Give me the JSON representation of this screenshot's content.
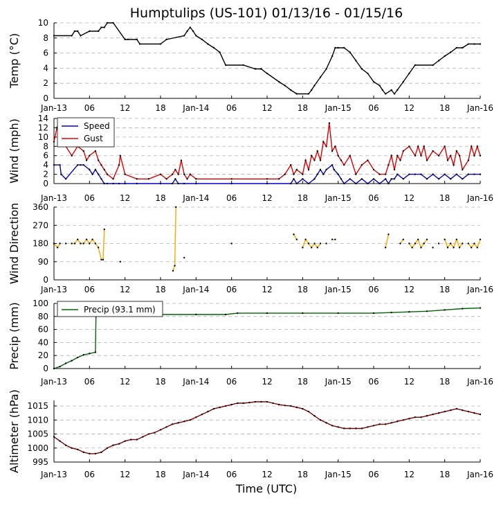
{
  "title": "Humptulips (US-101) 01/13/16 - 01/15/16",
  "xlabel": "Time (UTC)",
  "x_ticks": [
    {
      "h": 0,
      "label": "Jan-13"
    },
    {
      "h": 6,
      "label": "06"
    },
    {
      "h": 12,
      "label": "12"
    },
    {
      "h": 18,
      "label": "18"
    },
    {
      "h": 24,
      "label": "Jan-14"
    },
    {
      "h": 30,
      "label": "06"
    },
    {
      "h": 36,
      "label": "12"
    },
    {
      "h": 42,
      "label": "18"
    },
    {
      "h": 48,
      "label": "Jan-15"
    },
    {
      "h": 54,
      "label": "06"
    },
    {
      "h": 60,
      "label": "12"
    },
    {
      "h": 66,
      "label": "18"
    },
    {
      "h": 72,
      "label": "Jan-16"
    }
  ],
  "colors": {
    "temp": "#000000",
    "speed": "#0000cc",
    "gust": "#dd0000",
    "direction": "#ffa500",
    "precip": "#006600",
    "altimeter": "#800000",
    "grid": "#b0b0b0"
  },
  "chart_data": [
    {
      "type": "line",
      "name": "temperature",
      "ylabel": "Temp (°C)",
      "ylim": [
        0,
        10
      ],
      "yticks": [
        0,
        2,
        4,
        6,
        8,
        10
      ],
      "series": [
        {
          "name": "Temp",
          "x": [
            0,
            3,
            3.5,
            4,
            4.5,
            6,
            7.5,
            8,
            8.5,
            9,
            10,
            12,
            12.5,
            14,
            14.5,
            18,
            19,
            22,
            22.5,
            23,
            23.5,
            24,
            25,
            26,
            27,
            28,
            29,
            32,
            34,
            35,
            36,
            38,
            39,
            40,
            41,
            43,
            43.5,
            44,
            45,
            46,
            47,
            47.5,
            48,
            49,
            50,
            51,
            52,
            53,
            54,
            55,
            55.5,
            56,
            57,
            57.5,
            58,
            59,
            60,
            61,
            64,
            65,
            66,
            67,
            68,
            69,
            70,
            71,
            72
          ],
          "values": [
            8.3,
            8.3,
            8.9,
            8.9,
            8.3,
            8.9,
            8.9,
            9.4,
            9.4,
            10,
            10,
            7.8,
            7.8,
            7.8,
            7.2,
            7.2,
            7.8,
            8.3,
            8.9,
            9.4,
            8.9,
            8.3,
            7.8,
            7.2,
            6.7,
            6.1,
            4.4,
            4.4,
            3.9,
            3.9,
            3.3,
            2.2,
            1.7,
            1.1,
            0.6,
            0.6,
            1.1,
            1.7,
            2.8,
            3.9,
            5.6,
            6.7,
            6.7,
            6.7,
            6.1,
            5,
            3.9,
            3.3,
            2.2,
            1.7,
            1.1,
            0.6,
            1.1,
            0.6,
            1.1,
            2.2,
            3.3,
            4.4,
            4.4,
            5,
            5.6,
            6.1,
            6.7,
            6.7,
            7.2,
            7.2,
            7.2
          ]
        }
      ]
    },
    {
      "type": "line",
      "name": "wind",
      "ylabel": "Wind (mph)",
      "ylim": [
        0,
        14
      ],
      "yticks": [
        0,
        2,
        4,
        6,
        8,
        10,
        12,
        14
      ],
      "legend": [
        "Speed",
        "Gust"
      ],
      "series": [
        {
          "name": "Speed",
          "x": [
            0,
            1,
            1.2,
            2,
            4,
            4.5,
            5,
            6,
            6.5,
            7,
            7.5,
            8,
            8.5,
            9,
            10,
            11,
            12,
            14,
            18,
            20,
            20.5,
            21,
            22,
            24,
            30,
            36,
            40,
            40.5,
            41,
            42,
            43,
            44,
            44.5,
            45,
            45.5,
            46,
            47,
            47.3,
            48,
            48.5,
            49,
            50,
            51,
            52,
            53,
            54,
            55,
            56,
            56.5,
            57,
            57.5,
            58,
            59,
            60,
            61,
            62,
            63,
            64,
            65,
            66,
            67,
            68,
            69,
            70,
            71,
            72
          ],
          "values": [
            4,
            4,
            2,
            1,
            4,
            4,
            4,
            3,
            2,
            3,
            2,
            1,
            0,
            0,
            0,
            0,
            0,
            0,
            0,
            0,
            1,
            0,
            0,
            0,
            0,
            0,
            0,
            1,
            0,
            1,
            0,
            1,
            2,
            3,
            2,
            3,
            4,
            3,
            2,
            1,
            0,
            1,
            0,
            1,
            0,
            1,
            0,
            1,
            0,
            1,
            1,
            2,
            1,
            2,
            2,
            2,
            1,
            2,
            1,
            2,
            1,
            2,
            1,
            2,
            2,
            2
          ]
        },
        {
          "name": "Gust",
          "x": [
            0,
            0.5,
            1,
            2,
            3,
            4,
            5,
            5.5,
            6,
            7,
            7.5,
            8,
            8.5,
            9,
            10,
            11,
            11.2,
            12,
            14,
            16,
            18,
            19,
            20,
            20.5,
            21,
            21.5,
            22,
            22.5,
            23,
            24,
            30,
            36,
            38,
            39,
            40,
            40.5,
            41,
            42,
            42.5,
            43,
            43.5,
            44,
            44.5,
            45,
            45.5,
            46,
            46.5,
            47,
            47.5,
            48,
            48.5,
            49,
            50,
            51,
            52,
            53,
            54,
            55,
            56,
            56.5,
            57,
            57.5,
            58,
            58.5,
            59,
            60,
            61,
            61.5,
            62,
            62.5,
            63,
            64,
            65,
            66,
            66.5,
            67,
            67.5,
            68,
            68.5,
            69,
            70,
            70.5,
            71,
            71.5,
            72
          ],
          "values": [
            9,
            12,
            10,
            8,
            6,
            8,
            7,
            5,
            6,
            7,
            5,
            4,
            3,
            2,
            1,
            4,
            6,
            2,
            1,
            1,
            2,
            1,
            2,
            3,
            2,
            5,
            2,
            1,
            2,
            1,
            1,
            1,
            1,
            2,
            4,
            2,
            3,
            2,
            5,
            3,
            6,
            5,
            7,
            5,
            9,
            8,
            13,
            7,
            8,
            6,
            5,
            4,
            6,
            2,
            4,
            5,
            3,
            2,
            2,
            4,
            6,
            3,
            6,
            5,
            7,
            8,
            6,
            8,
            6,
            8,
            5,
            7,
            6,
            8,
            5,
            6,
            4,
            7,
            6,
            3,
            5,
            8,
            6,
            8,
            6
          ]
        }
      ]
    },
    {
      "type": "scatter",
      "name": "wind_direction",
      "ylabel": "Wind Direction",
      "ylim": [
        0,
        360
      ],
      "yticks": [
        0,
        90,
        180,
        270,
        360
      ],
      "series": [
        {
          "name": "Direction",
          "x": [
            0,
            0.6,
            1,
            2,
            3,
            3.5,
            4,
            4.5,
            5,
            5.5,
            6,
            6.5,
            7,
            7.5,
            8,
            8.3,
            8.5,
            11.2,
            20.1,
            20.4,
            20.6,
            22,
            30,
            40.5,
            41,
            42,
            42.5,
            43,
            43.5,
            44,
            44.5,
            45,
            46,
            47,
            47.5,
            56,
            56.5,
            58.5,
            59,
            60,
            60.5,
            61,
            61.5,
            62,
            62.5,
            63,
            64,
            65,
            66,
            66.5,
            67,
            67.5,
            68,
            68.5,
            69,
            70,
            70.5,
            71,
            71.5,
            72
          ],
          "values": [
            180,
            160,
            180,
            180,
            180,
            180,
            200,
            180,
            180,
            200,
            180,
            200,
            180,
            160,
            100,
            100,
            250,
            90,
            45,
            70,
            360,
            110,
            180,
            225,
            200,
            160,
            200,
            180,
            160,
            180,
            160,
            180,
            180,
            200,
            200,
            160,
            225,
            180,
            200,
            180,
            160,
            180,
            200,
            160,
            180,
            200,
            160,
            180,
            200,
            160,
            180,
            160,
            200,
            160,
            180,
            180,
            160,
            180,
            160,
            200
          ]
        }
      ]
    },
    {
      "type": "line",
      "name": "precip",
      "ylabel": "Precip (mm)",
      "ylim": [
        0,
        100
      ],
      "yticks": [
        0,
        20,
        40,
        60,
        80,
        100
      ],
      "legend": [
        "Precip (93.1 mm)"
      ],
      "series": [
        {
          "name": "Precip (93.1 mm)",
          "x": [
            0,
            1,
            2,
            3,
            4,
            5,
            6,
            7,
            7.1,
            7.3,
            8,
            12,
            18,
            24,
            29,
            31,
            36,
            42,
            48,
            54,
            57,
            60,
            63,
            66,
            69,
            72
          ],
          "values": [
            0,
            3,
            8,
            12,
            17,
            21,
            23,
            25,
            80,
            83,
            83,
            83,
            83,
            83,
            83,
            85,
            85,
            85,
            85,
            85,
            86,
            87,
            88,
            90,
            92,
            93
          ]
        }
      ]
    },
    {
      "type": "line",
      "name": "altimeter",
      "ylabel": "Altimeter (hPa)",
      "ylim": [
        995,
        1017
      ],
      "yticks": [
        995,
        1000,
        1005,
        1010,
        1015
      ],
      "series": [
        {
          "name": "Altimeter",
          "x": [
            0,
            1,
            2,
            3,
            4,
            5,
            6,
            7,
            8,
            9,
            10,
            11,
            12,
            13,
            14,
            15,
            16,
            17,
            18,
            19,
            20,
            21,
            22,
            23,
            24,
            25,
            26,
            27,
            28,
            29,
            30,
            31,
            32,
            33,
            34,
            35,
            36,
            37,
            38,
            39,
            40,
            41,
            42,
            43,
            44,
            45,
            46,
            47,
            48,
            49,
            50,
            51,
            52,
            53,
            54,
            55,
            56,
            57,
            58,
            59,
            60,
            61,
            62,
            63,
            64,
            65,
            66,
            67,
            68,
            69,
            70,
            71,
            72
          ],
          "values": [
            1004,
            1002.5,
            1001,
            1000,
            999.5,
            998.5,
            998,
            998,
            998.5,
            1000,
            1001,
            1001.5,
            1002.5,
            1003,
            1003,
            1004,
            1005,
            1005.5,
            1006.5,
            1007.5,
            1008.5,
            1009,
            1009.5,
            1010,
            1011,
            1012,
            1013,
            1014,
            1014.5,
            1015,
            1015.5,
            1016,
            1016,
            1016.2,
            1016.5,
            1016.5,
            1016.5,
            1016,
            1015.5,
            1015.2,
            1015,
            1014.5,
            1014,
            1013,
            1011.5,
            1010,
            1009,
            1008,
            1007.5,
            1007,
            1007,
            1007,
            1007,
            1007.5,
            1008,
            1008.5,
            1008.5,
            1009,
            1009.5,
            1010,
            1010.5,
            1011,
            1011,
            1011.5,
            1012,
            1012.5,
            1013,
            1013.5,
            1014,
            1013.5,
            1013,
            1012.5,
            1012
          ]
        }
      ]
    }
  ]
}
